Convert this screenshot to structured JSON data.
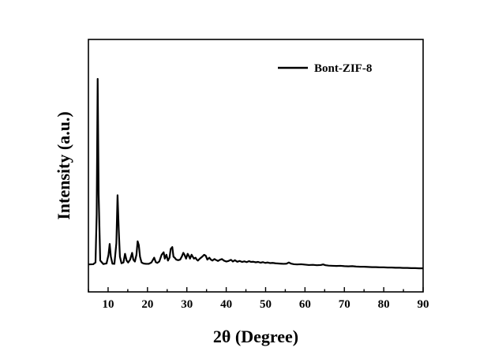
{
  "chart_data": {
    "type": "line",
    "title": "",
    "xlabel": "2θ (Degree)",
    "ylabel": "Intensity (a.u.)",
    "xlim": [
      5,
      90
    ],
    "ylim": [
      0,
      100
    ],
    "xticks": [
      10,
      20,
      30,
      40,
      50,
      60,
      70,
      80,
      90
    ],
    "show_yticks": false,
    "grid": false,
    "legend_position": "top-right",
    "line_color": "#000000",
    "series": [
      {
        "name": "Bont-ZIF-8",
        "x": [
          5.0,
          6.2,
          6.8,
          7.1,
          7.35,
          7.6,
          8.0,
          8.8,
          9.6,
          10.1,
          10.4,
          10.7,
          11.1,
          11.6,
          12.1,
          12.4,
          12.7,
          13.0,
          13.4,
          13.9,
          14.3,
          14.7,
          15.1,
          15.6,
          16.1,
          16.4,
          16.8,
          17.2,
          17.5,
          17.8,
          18.1,
          18.5,
          19.0,
          19.6,
          20.3,
          21.0,
          21.7,
          22.1,
          22.5,
          23.0,
          23.6,
          24.1,
          24.4,
          24.8,
          25.2,
          25.6,
          25.9,
          26.3,
          26.6,
          26.9,
          27.3,
          27.8,
          28.3,
          28.7,
          29.1,
          29.4,
          29.8,
          30.2,
          30.5,
          30.8,
          31.2,
          31.5,
          31.8,
          32.2,
          32.5,
          32.8,
          33.3,
          33.9,
          34.4,
          34.8,
          35.2,
          35.7,
          36.1,
          36.5,
          37.0,
          37.4,
          37.9,
          38.4,
          38.9,
          39.4,
          40.0,
          40.6,
          41.2,
          41.7,
          42.2,
          42.8,
          43.4,
          44.0,
          44.6,
          45.2,
          45.8,
          46.3,
          46.9,
          47.5,
          48.1,
          48.7,
          49.3,
          49.9,
          50.5,
          51.1,
          51.8,
          52.5,
          53.2,
          53.9,
          54.6,
          55.3,
          55.9,
          56.5,
          57.2,
          58.0,
          59.0,
          60.0,
          61.0,
          62.0,
          63.0,
          64.0,
          64.6,
          65.2,
          66.0,
          67.0,
          68.0,
          69.0,
          70.0,
          71.0,
          72.0,
          73.0,
          74.0,
          75.0,
          76.0,
          77.0,
          78.0,
          79.0,
          80.0,
          81.0,
          82.0,
          83.0,
          84.0,
          85.0,
          86.0,
          87.0,
          88.0,
          89.0,
          90.0
        ],
        "y": [
          4.0,
          4.1,
          5.0,
          30.0,
          100.0,
          40.0,
          6.0,
          4.2,
          4.5,
          9.0,
          14.6,
          8.0,
          4.4,
          4.3,
          15.0,
          39.8,
          22.0,
          8.0,
          4.6,
          5.0,
          9.5,
          6.0,
          5.0,
          6.5,
          10.0,
          6.5,
          5.5,
          9.0,
          16.0,
          14.0,
          8.0,
          5.0,
          4.5,
          4.3,
          4.3,
          5.0,
          7.5,
          5.2,
          4.8,
          5.5,
          9.0,
          10.3,
          7.0,
          9.0,
          6.0,
          7.5,
          12.0,
          13.0,
          8.0,
          7.5,
          6.5,
          6.2,
          6.5,
          8.0,
          10.0,
          9.0,
          7.0,
          9.5,
          8.5,
          7.0,
          9.0,
          8.0,
          7.0,
          7.5,
          6.5,
          6.0,
          7.0,
          8.0,
          9.0,
          8.5,
          6.5,
          7.5,
          6.5,
          6.0,
          6.8,
          6.3,
          5.8,
          6.4,
          6.8,
          6.0,
          5.5,
          5.8,
          6.4,
          5.5,
          6.2,
          5.4,
          5.8,
          5.3,
          5.6,
          5.2,
          5.7,
          5.3,
          5.4,
          5.1,
          5.3,
          4.9,
          5.2,
          4.8,
          5.0,
          4.7,
          4.8,
          4.6,
          4.5,
          4.4,
          4.3,
          4.4,
          5.0,
          4.4,
          4.1,
          4.0,
          4.1,
          3.9,
          3.7,
          3.8,
          3.6,
          3.7,
          4.0,
          3.6,
          3.4,
          3.3,
          3.2,
          3.3,
          3.1,
          3.0,
          3.1,
          2.9,
          2.8,
          2.8,
          2.7,
          2.6,
          2.6,
          2.5,
          2.5,
          2.4,
          2.4,
          2.3,
          2.3,
          2.2,
          2.2,
          2.1,
          2.1,
          2.0,
          2.0
        ]
      }
    ]
  }
}
